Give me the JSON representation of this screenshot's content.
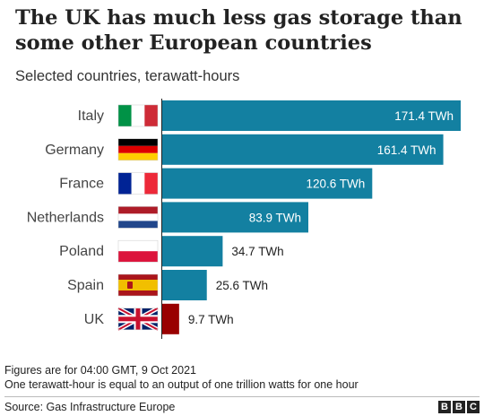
{
  "title": "The UK has much less gas storage than some other European countries",
  "subtitle": "Selected countries, terawatt-hours",
  "notes": [
    "Figures are for 04:00 GMT, 9 Oct 2021",
    "One terawatt-hour is equal to an output of one trillion watts for one hour"
  ],
  "source": "Source: Gas Infrastructure Europe",
  "logo": [
    "B",
    "B",
    "C"
  ],
  "chart_data": {
    "type": "bar",
    "orientation": "horizontal",
    "categories": [
      "Italy",
      "Germany",
      "France",
      "Netherlands",
      "Poland",
      "Spain",
      "UK"
    ],
    "values": [
      171.4,
      161.4,
      120.6,
      83.9,
      34.7,
      25.6,
      9.7
    ],
    "value_labels": [
      "171.4 TWh",
      "161.4 TWh",
      "120.6 TWh",
      "83.9 TWh",
      "34.7 TWh",
      "25.6 TWh",
      "9.7 TWh"
    ],
    "flags": [
      "italy-flag",
      "germany-flag",
      "france-flag",
      "netherlands-flag",
      "poland-flag",
      "spain-flag",
      "uk-flag"
    ],
    "bar_colors": [
      "#1380a1",
      "#1380a1",
      "#1380a1",
      "#1380a1",
      "#1380a1",
      "#1380a1",
      "#990000"
    ],
    "xlim": [
      0,
      171.4
    ],
    "grid": false
  }
}
